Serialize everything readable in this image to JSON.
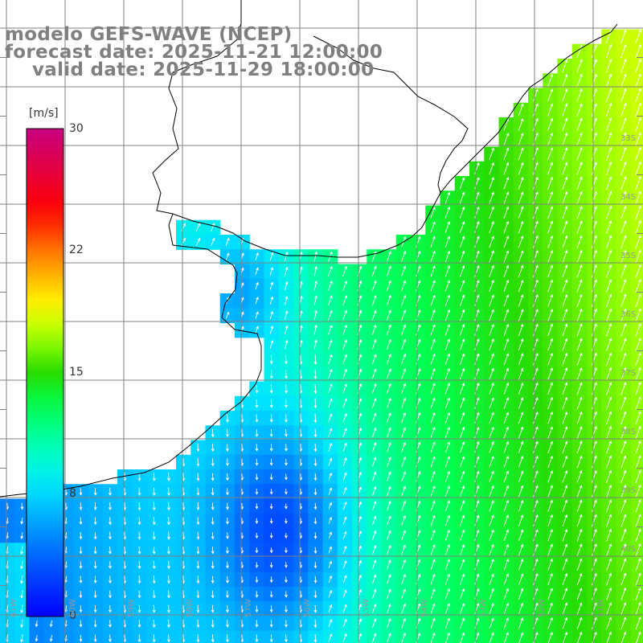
{
  "title": {
    "line1": "modelo GEFS-WAVE (NCEP)",
    "line2": "forecast date: 2025-11-21 12:00:00",
    "line3": "valid date: 2025-11-29 18:00:00"
  },
  "colorbar": {
    "unit": "[m/s]",
    "min": 0,
    "max": 30,
    "ticks": [
      "30",
      "22",
      "15",
      "8",
      "0"
    ],
    "tick_values": [
      30,
      22,
      15,
      8,
      0
    ],
    "colors": [
      "#0000ff",
      "#00aaff",
      "#00ffff",
      "#00ff66",
      "#22dd00",
      "#88ff00",
      "#ffff00",
      "#ff8800",
      "#ff0000",
      "#cc0088"
    ]
  },
  "axes": {
    "lat_labels": [
      "33S",
      "34S",
      "35S",
      "36S",
      "37S",
      "38S",
      "39S",
      "40S"
    ],
    "lat_values": [
      -33,
      -34,
      -35,
      -36,
      -37,
      -38,
      -39,
      -40
    ],
    "lon_labels": [
      "61W",
      "60W",
      "59W",
      "58W",
      "57W",
      "56W",
      "55W",
      "54W",
      "53W",
      "52W",
      "51W"
    ],
    "lon_values": [
      -61,
      -60,
      -59,
      -58,
      -57,
      -56,
      -55,
      -54,
      -53,
      -52,
      -51
    ],
    "lon_range": [
      -61.5,
      -50.5
    ],
    "lat_range": [
      -41.0,
      -30.0
    ]
  },
  "colors": {
    "land": "#ffffff",
    "coast": "#000000",
    "grid": "#808080",
    "arrow": "#ffffff"
  }
}
